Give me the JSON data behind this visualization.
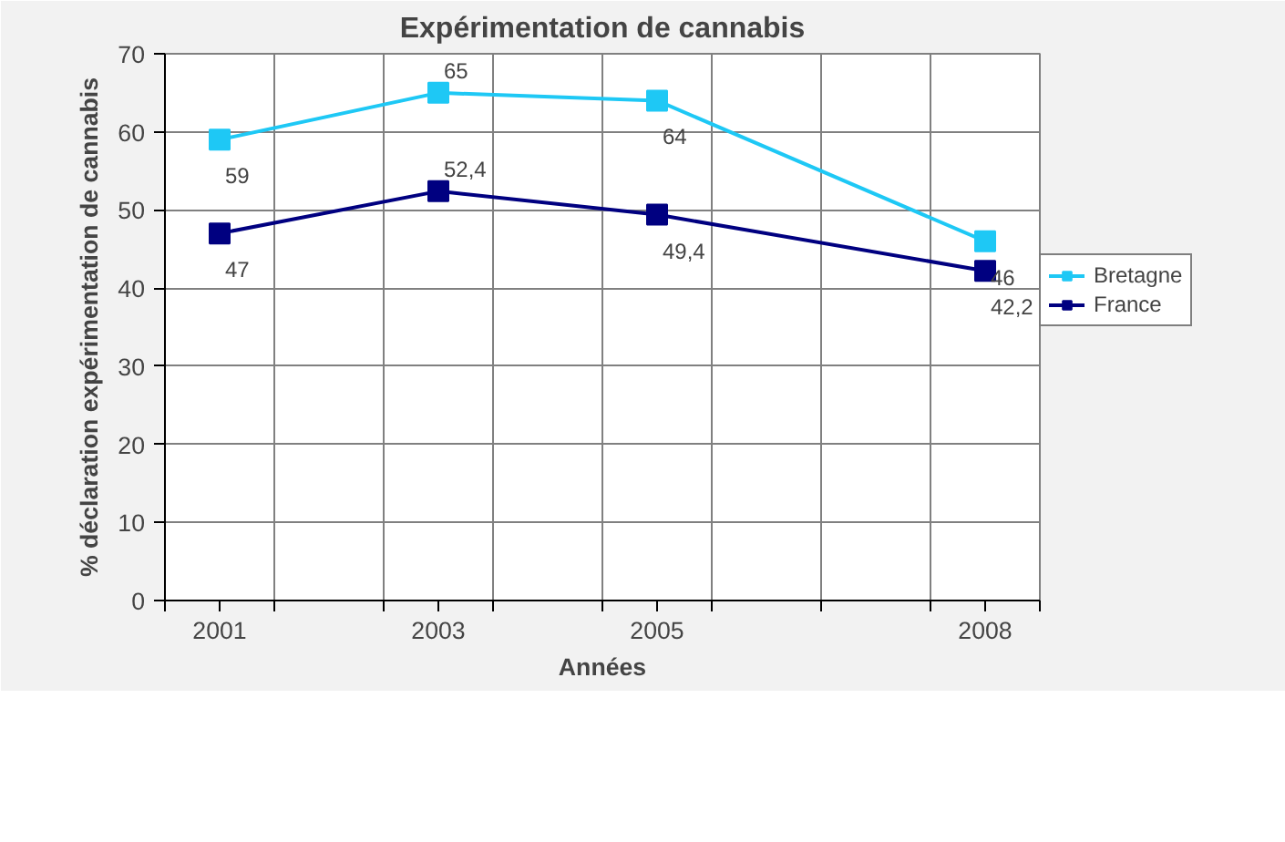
{
  "chart_data": {
    "type": "line",
    "title": "Expérimentation de cannabis",
    "xlabel": "Années",
    "ylabel": "% déclaration expérimentation de cannabis",
    "x": [
      2001,
      2003,
      2005,
      2008
    ],
    "series": [
      {
        "name": "Bretagne",
        "color": "#1ec8f5",
        "values": [
          59,
          65,
          64,
          46
        ],
        "value_labels": [
          "59",
          "65",
          "64",
          "46"
        ]
      },
      {
        "name": "France",
        "color": "#000080",
        "values": [
          47,
          52.4,
          49.4,
          42.2
        ],
        "value_labels": [
          "47",
          "52,4",
          "49,4",
          "42,2"
        ]
      }
    ],
    "xlim": [
      2000.5,
      2008.5
    ],
    "xticks": [
      {
        "value": 2000.5,
        "label": null
      },
      2001,
      {
        "value": 2001.5,
        "label": null
      },
      {
        "value": 2002.5,
        "label": null
      },
      2003,
      {
        "value": 2003.5,
        "label": null
      },
      {
        "value": 2004.5,
        "label": null
      },
      2005,
      {
        "value": 2005.5,
        "label": null
      },
      {
        "value": 2006.5,
        "label": null
      },
      {
        "value": 2007.5,
        "label": null
      },
      2008,
      {
        "value": 2008.5,
        "label": null
      }
    ],
    "ylim": [
      0,
      70
    ],
    "yticks": [
      0,
      10,
      20,
      30,
      40,
      50,
      60,
      70
    ],
    "grid": true,
    "legend": "right",
    "marker": "square",
    "line_style": "solid"
  }
}
